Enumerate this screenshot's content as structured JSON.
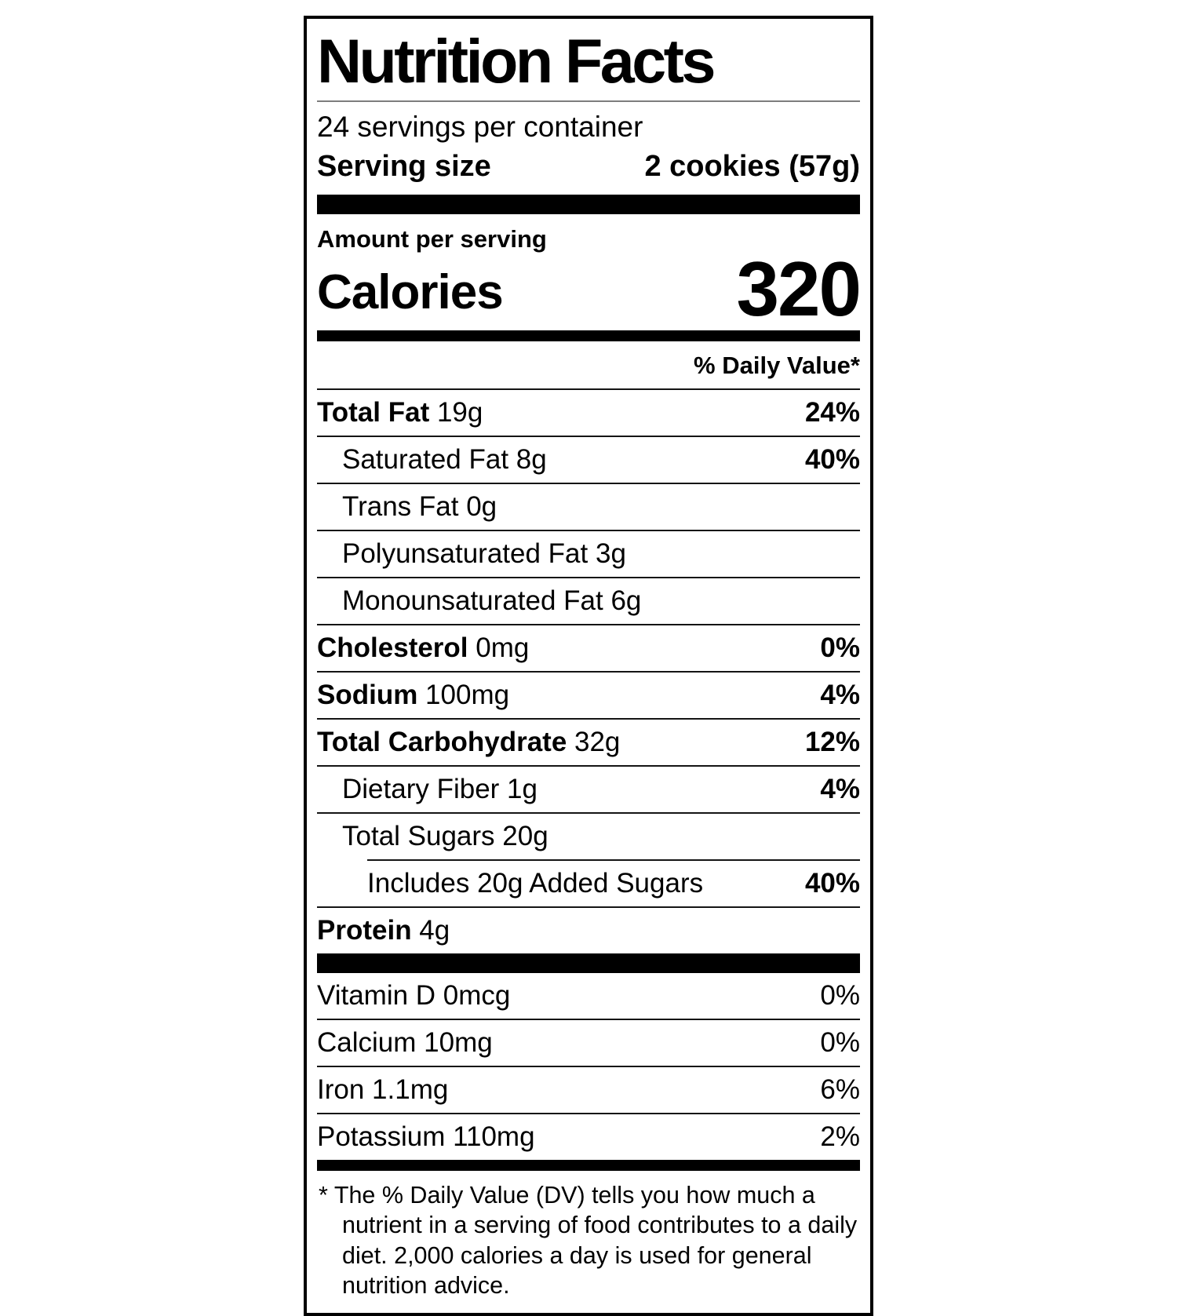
{
  "label": {
    "title": "Nutrition Facts",
    "servings_per_container": "24 servings per container",
    "serving_size_label": "Serving size",
    "serving_size_value": "2 cookies (57g)",
    "amount_per_serving": "Amount per serving",
    "calories_label": "Calories",
    "calories_value": "320",
    "daily_value_header": "% Daily Value*",
    "nutrients": [
      {
        "name": "Total Fat",
        "amount": "19g",
        "dv": "24%",
        "bold": true,
        "indent": 0
      },
      {
        "name": "Saturated Fat",
        "amount": "8g",
        "dv": "40%",
        "bold": false,
        "indent": 1
      },
      {
        "name": "Trans Fat",
        "amount": "0g",
        "dv": "",
        "bold": false,
        "indent": 1
      },
      {
        "name": "Polyunsaturated Fat",
        "amount": "3g",
        "dv": "",
        "bold": false,
        "indent": 1
      },
      {
        "name": "Monounsaturated Fat",
        "amount": "6g",
        "dv": "",
        "bold": false,
        "indent": 1
      },
      {
        "name": "Cholesterol",
        "amount": "0mg",
        "dv": "0%",
        "bold": true,
        "indent": 0
      },
      {
        "name": "Sodium",
        "amount": "100mg",
        "dv": "4%",
        "bold": true,
        "indent": 0
      },
      {
        "name": "Total Carbohydrate",
        "amount": "32g",
        "dv": "12%",
        "bold": true,
        "indent": 0
      },
      {
        "name": "Dietary Fiber",
        "amount": "1g",
        "dv": "4%",
        "bold": false,
        "indent": 1
      },
      {
        "name": "Total Sugars",
        "amount": "20g",
        "dv": "",
        "bold": false,
        "indent": 1
      },
      {
        "name": "Includes 20g Added Sugars",
        "amount": "",
        "dv": "40%",
        "bold": false,
        "indent": 2,
        "rule_indent": true
      },
      {
        "name": "Protein",
        "amount": "4g",
        "dv": "",
        "bold": true,
        "indent": 0
      }
    ],
    "vitamins": [
      {
        "name": "Vitamin D",
        "amount": "0mcg",
        "dv": "0%"
      },
      {
        "name": "Calcium",
        "amount": "10mg",
        "dv": "0%"
      },
      {
        "name": "Iron",
        "amount": "1.1mg",
        "dv": "6%"
      },
      {
        "name": "Potassium",
        "amount": "110mg",
        "dv": "2%"
      }
    ],
    "footnote_marker": "*",
    "footnote_text": "The % Daily Value (DV) tells you how much a nutrient in a serving of food contributes to a daily diet. 2,000 calories a day is used for general nutrition advice."
  }
}
